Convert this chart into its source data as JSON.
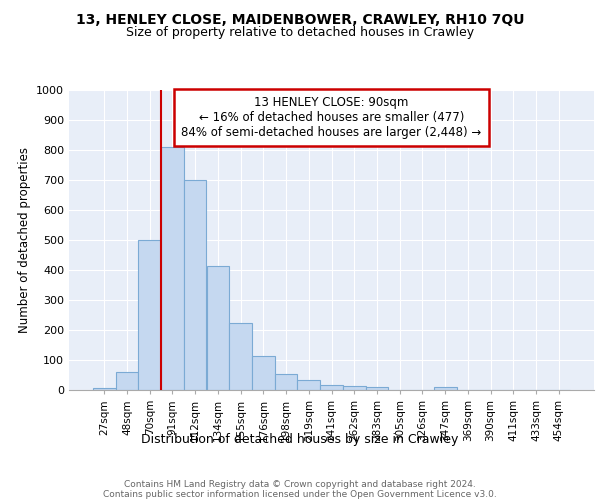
{
  "title1": "13, HENLEY CLOSE, MAIDENBOWER, CRAWLEY, RH10 7QU",
  "title2": "Size of property relative to detached houses in Crawley",
  "xlabel": "Distribution of detached houses by size in Crawley",
  "ylabel": "Number of detached properties",
  "categories": [
    "27sqm",
    "48sqm",
    "70sqm",
    "91sqm",
    "112sqm",
    "134sqm",
    "155sqm",
    "176sqm",
    "198sqm",
    "219sqm",
    "241sqm",
    "262sqm",
    "283sqm",
    "305sqm",
    "326sqm",
    "347sqm",
    "369sqm",
    "390sqm",
    "411sqm",
    "433sqm",
    "454sqm"
  ],
  "values": [
    8,
    60,
    500,
    810,
    700,
    415,
    225,
    115,
    53,
    35,
    18,
    13,
    10,
    0,
    0,
    10,
    0,
    0,
    0,
    0,
    0
  ],
  "bar_color": "#c5d8f0",
  "bar_edge_color": "#7baad4",
  "vline_color": "#cc0000",
  "annotation_text": "13 HENLEY CLOSE: 90sqm\n← 16% of detached houses are smaller (477)\n84% of semi-detached houses are larger (2,448) →",
  "annotation_box_color": "#ffffff",
  "annotation_box_edge": "#cc0000",
  "ylim": [
    0,
    1000
  ],
  "yticks": [
    0,
    100,
    200,
    300,
    400,
    500,
    600,
    700,
    800,
    900,
    1000
  ],
  "background_color": "#e8eef8",
  "footer_text": "Contains HM Land Registry data © Crown copyright and database right 2024.\nContains public sector information licensed under the Open Government Licence v3.0.",
  "title1_fontsize": 10,
  "title2_fontsize": 9
}
